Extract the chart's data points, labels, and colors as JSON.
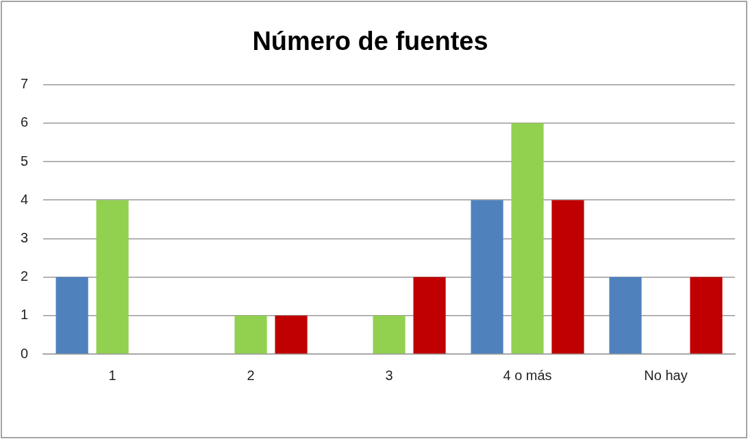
{
  "chart_data": {
    "type": "bar",
    "title": "Número de fuentes",
    "categories": [
      "1",
      "2",
      "3",
      "4 o más",
      "No hay"
    ],
    "series": [
      {
        "color": "#4f81bd",
        "values": [
          2,
          0,
          0,
          4,
          2
        ]
      },
      {
        "color": "#92d050",
        "values": [
          4,
          1,
          1,
          6,
          0
        ]
      },
      {
        "color": "#c00000",
        "values": [
          0,
          1,
          2,
          4,
          2
        ]
      }
    ],
    "ylim": [
      0,
      7
    ],
    "yticks": [
      0,
      1,
      2,
      3,
      4,
      5,
      6,
      7
    ],
    "grid": "y"
  }
}
